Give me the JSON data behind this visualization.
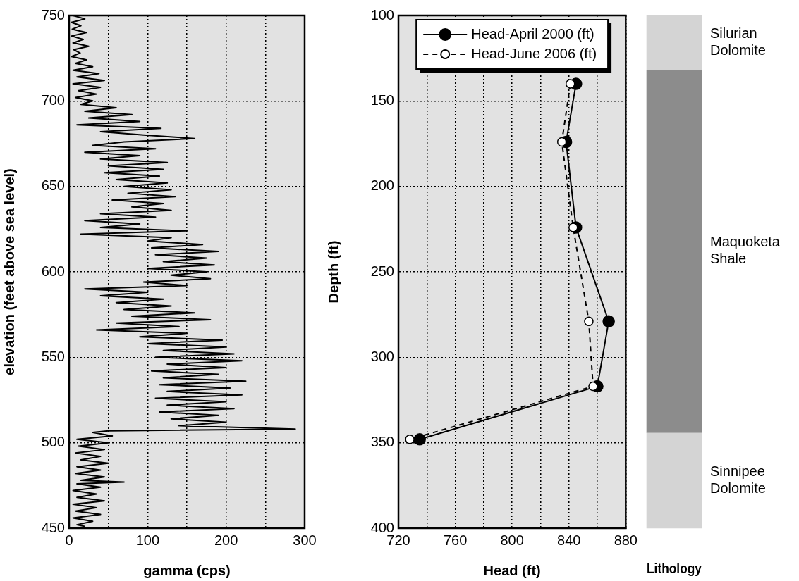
{
  "chart_data": [
    {
      "type": "line",
      "xlabel": "gamma (cps)",
      "ylabel": "elevation (feet above sea level)",
      "xlim": [
        0,
        300
      ],
      "xticks": [
        0,
        {
          "value": 50,
          "label": null
        },
        100,
        {
          "value": 150,
          "label": null
        },
        200,
        {
          "value": 250,
          "label": null
        },
        300
      ],
      "ylim": [
        450,
        750
      ],
      "yticks": [
        450,
        500,
        550,
        600,
        650,
        700,
        750
      ],
      "grid": true,
      "marker": "none",
      "line_style": "solid",
      "series": [
        {
          "color": "#000000",
          "x": [
            5,
            20,
            3,
            15,
            4,
            22,
            3,
            18,
            5,
            25,
            6,
            14,
            3,
            22,
            8,
            30,
            5,
            38,
            10,
            45,
            5,
            40,
            12,
            35,
            8,
            30,
            15,
            60,
            20,
            80,
            25,
            90,
            10,
            117,
            40,
            95,
            160,
            70,
            30,
            110,
            20,
            90,
            40,
            125,
            50,
            120,
            45,
            115,
            60,
            125,
            70,
            130,
            75,
            135,
            55,
            120,
            80,
            130,
            40,
            110,
            20,
            90,
            40,
            150,
            15,
            130,
            100,
            170,
            105,
            190,
            110,
            175,
            120,
            185,
            100,
            175,
            130,
            180,
            95,
            150,
            20,
            100,
            40,
            120,
            60,
            130,
            70,
            160,
            80,
            180,
            60,
            140,
            35,
            150,
            90,
            195,
            100,
            200,
            120,
            210,
            110,
            220,
            125,
            200,
            105,
            190,
            120,
            225,
            115,
            205,
            125,
            220,
            110,
            200,
            125,
            210,
            115,
            190,
            130,
            200,
            140,
            288,
            50,
            30,
            55,
            10,
            50,
            12,
            45,
            8,
            40,
            15,
            50,
            10,
            40,
            8,
            45,
            15,
            70,
            10,
            40,
            5,
            35,
            10,
            45,
            5,
            35,
            8,
            40,
            5,
            30,
            10,
            20
          ],
          "values": [
            750,
            748,
            746,
            744,
            742,
            740,
            738,
            736,
            734,
            732,
            730,
            728,
            726,
            724,
            722,
            720,
            718,
            716,
            714,
            712,
            710,
            708,
            706,
            704,
            702,
            700,
            698,
            696,
            694,
            692,
            690,
            688,
            686,
            684,
            682,
            680,
            678,
            676,
            674,
            672,
            670,
            668,
            666,
            664,
            662,
            660,
            658,
            656,
            654,
            652,
            650,
            648,
            646,
            644,
            642,
            640,
            638,
            636,
            634,
            632,
            630,
            628,
            626,
            624,
            622,
            620,
            618,
            616,
            614,
            612,
            610,
            608,
            606,
            604,
            602,
            600,
            598,
            596,
            594,
            592,
            590,
            588,
            586,
            584,
            582,
            580,
            578,
            576,
            574,
            572,
            570,
            568,
            566,
            564,
            562,
            560,
            558,
            556,
            554,
            552,
            550,
            548,
            546,
            544,
            542,
            540,
            538,
            536,
            534,
            532,
            530,
            528,
            526,
            524,
            522,
            520,
            518,
            516,
            514,
            512,
            510,
            508,
            507,
            506,
            504,
            502,
            500,
            498,
            496,
            494,
            492,
            490,
            488,
            486,
            484,
            482,
            480,
            478,
            477,
            476,
            474,
            472,
            470,
            468,
            466,
            464,
            462,
            460,
            458,
            456,
            454,
            452,
            451
          ]
        }
      ]
    },
    {
      "type": "line",
      "xlabel": "Head (ft)",
      "ylabel": "Depth (ft)",
      "xlim": [
        720,
        880
      ],
      "xticks": [
        720,
        {
          "value": 740,
          "label": null
        },
        760,
        {
          "value": 780,
          "label": null
        },
        800,
        {
          "value": 820,
          "label": null
        },
        840,
        {
          "value": 860,
          "label": null
        },
        880
      ],
      "ylim": [
        400,
        100
      ],
      "yticks": [
        100,
        150,
        200,
        250,
        300,
        350,
        400
      ],
      "grid": true,
      "legend": "top",
      "series": [
        {
          "name": "Head-April 2000 (ft)",
          "color": "#000000",
          "marker": "circle",
          "line_style": "solid",
          "x": [
            845,
            838,
            845,
            868,
            860,
            735
          ],
          "values": [
            140,
            174,
            224,
            279,
            317,
            348
          ]
        },
        {
          "name": "Head-June 2006 (ft)",
          "color": "#000000",
          "marker": "circle",
          "line_style": "dashed",
          "x": [
            841,
            835,
            843,
            854,
            857,
            728
          ],
          "values": [
            140,
            174,
            224,
            279,
            317,
            348
          ]
        }
      ]
    },
    {
      "type": "bar",
      "xlabel": "Lithology",
      "categories": [
        null
      ],
      "ylim": [
        400,
        100
      ],
      "series": [
        {
          "name": "Silurian Dolomite",
          "color": "#d4d4d4",
          "base": [
            100
          ],
          "values": [
            32
          ]
        },
        {
          "name": "Maquoketa Shale",
          "color": "#8c8c8c",
          "base": [
            132
          ],
          "values": [
            212
          ]
        },
        {
          "name": "Sinnipee Dolomite",
          "color": "#d4d4d4",
          "base": [
            344
          ],
          "values": [
            56
          ]
        }
      ]
    }
  ]
}
